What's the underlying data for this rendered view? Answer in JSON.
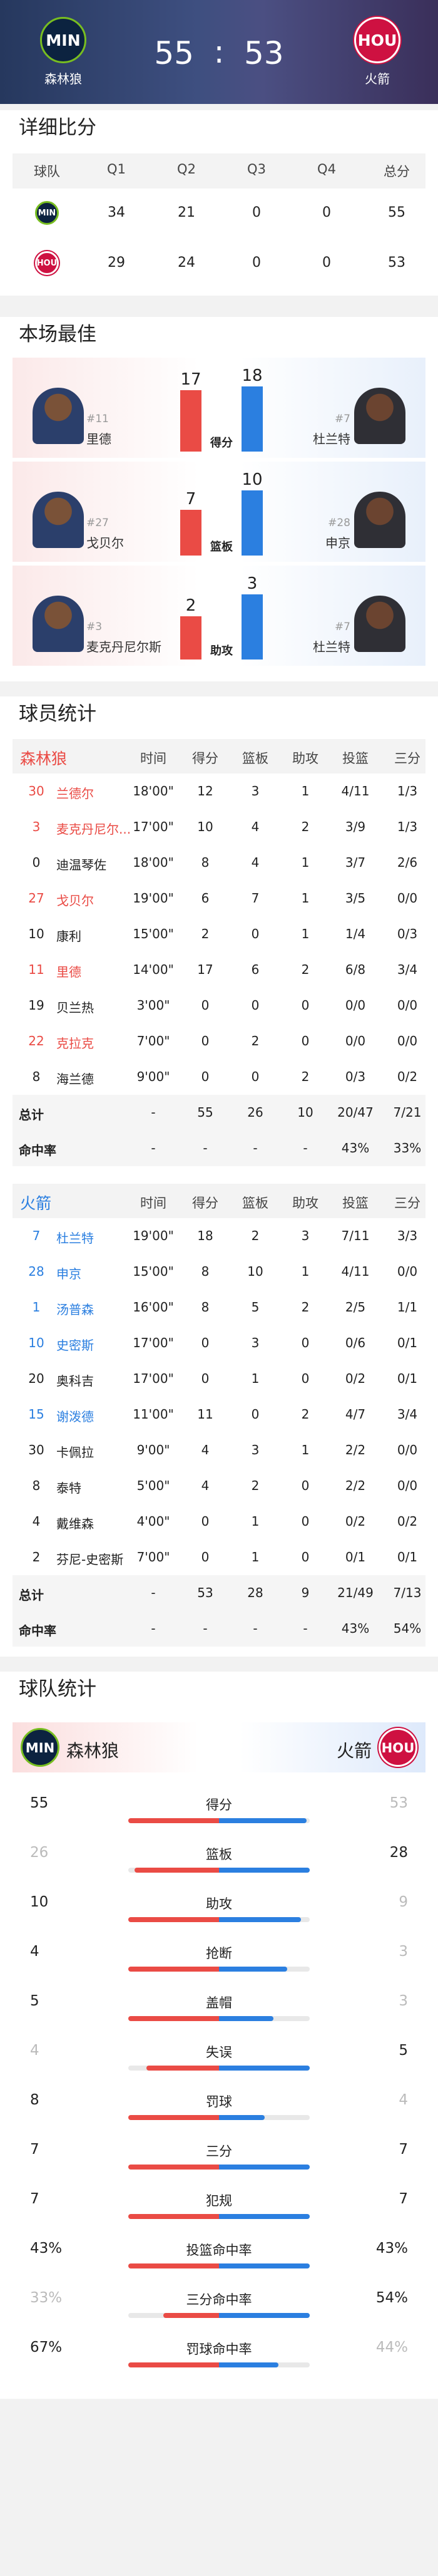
{
  "header": {
    "home": {
      "logo": "MIN",
      "name": "森林狼",
      "score": 55
    },
    "away": {
      "logo": "HOU",
      "name": "火箭",
      "score": 53
    },
    "separator": ":"
  },
  "colors": {
    "home": "#ea4b45",
    "away": "#2b7fe0"
  },
  "quarter_scores": {
    "title": "详细比分",
    "columns": [
      "球队",
      "Q1",
      "Q2",
      "Q3",
      "Q4",
      "总分"
    ],
    "rows": [
      {
        "logo": "MIN",
        "scores": [
          34,
          21,
          0,
          0,
          55
        ]
      },
      {
        "logo": "HOU",
        "scores": [
          29,
          24,
          0,
          0,
          53
        ]
      }
    ]
  },
  "leaders": {
    "title": "本场最佳",
    "items": [
      {
        "stat": "得分",
        "home": {
          "number": "#11",
          "name": "里德",
          "value": 17
        },
        "away": {
          "number": "#7",
          "name": "杜兰特",
          "value": 18
        }
      },
      {
        "stat": "篮板",
        "home": {
          "number": "#27",
          "name": "戈贝尔",
          "value": 7
        },
        "away": {
          "number": "#28",
          "name": "申京",
          "value": 10
        }
      },
      {
        "stat": "助攻",
        "home": {
          "number": "#3",
          "name": "麦克丹尼尔斯",
          "value": 2
        },
        "away": {
          "number": "#7",
          "name": "杜兰特",
          "value": 3
        }
      }
    ]
  },
  "player_stats": {
    "title": "球员统计",
    "columns": [
      "时间",
      "得分",
      "篮板",
      "助攻",
      "投篮",
      "三分"
    ],
    "teams": [
      {
        "name": "森林狼",
        "color": "#ea4b45",
        "players": [
          {
            "number": "30",
            "name": "兰德尔",
            "color": "#ea4b45",
            "cells": [
              "18'00\"",
              12,
              3,
              1,
              "4/11",
              "1/3"
            ]
          },
          {
            "number": "3",
            "name": "麦克丹尼尔...",
            "color": "#ea4b45",
            "cells": [
              "17'00\"",
              10,
              4,
              2,
              "3/9",
              "1/3"
            ]
          },
          {
            "number": "0",
            "name": "迪温琴佐",
            "cells": [
              "18'00\"",
              8,
              4,
              1,
              "3/7",
              "2/6"
            ]
          },
          {
            "number": "27",
            "name": "戈贝尔",
            "color": "#ea4b45",
            "cells": [
              "19'00\"",
              6,
              7,
              1,
              "3/5",
              "0/0"
            ]
          },
          {
            "number": "10",
            "name": "康利",
            "cells": [
              "15'00\"",
              2,
              0,
              1,
              "1/4",
              "0/3"
            ]
          },
          {
            "number": "11",
            "name": "里德",
            "color": "#ea4b45",
            "cells": [
              "14'00\"",
              17,
              6,
              2,
              "6/8",
              "3/4"
            ]
          },
          {
            "number": "19",
            "name": "贝兰热",
            "cells": [
              "3'00\"",
              0,
              0,
              0,
              "0/0",
              "0/0"
            ]
          },
          {
            "number": "22",
            "name": "克拉克",
            "color": "#ea4b45",
            "cells": [
              "7'00\"",
              0,
              2,
              0,
              "0/0",
              "0/0"
            ]
          },
          {
            "number": "8",
            "name": "海兰德",
            "cells": [
              "9'00\"",
              0,
              0,
              2,
              "0/3",
              "0/2"
            ]
          }
        ],
        "total": {
          "label": "总计",
          "cells": [
            "-",
            55,
            26,
            10,
            "20/47",
            "7/21"
          ]
        },
        "pct": {
          "label": "命中率",
          "cells": [
            "-",
            "-",
            "-",
            "-",
            "43%",
            "33%"
          ]
        }
      },
      {
        "name": "火箭",
        "color": "#2b7fe0",
        "players": [
          {
            "number": "7",
            "name": "杜兰特",
            "color": "#2b7fe0",
            "cells": [
              "19'00\"",
              18,
              2,
              3,
              "7/11",
              "3/3"
            ]
          },
          {
            "number": "28",
            "name": "申京",
            "color": "#2b7fe0",
            "cells": [
              "15'00\"",
              8,
              10,
              1,
              "4/11",
              "0/0"
            ]
          },
          {
            "number": "1",
            "name": "汤普森",
            "color": "#2b7fe0",
            "cells": [
              "16'00\"",
              8,
              5,
              2,
              "2/5",
              "1/1"
            ]
          },
          {
            "number": "10",
            "name": "史密斯",
            "color": "#2b7fe0",
            "cells": [
              "17'00\"",
              0,
              3,
              0,
              "0/6",
              "0/1"
            ]
          },
          {
            "number": "20",
            "name": "奥科吉",
            "cells": [
              "17'00\"",
              0,
              1,
              0,
              "0/2",
              "0/1"
            ]
          },
          {
            "number": "15",
            "name": "谢泼德",
            "color": "#2b7fe0",
            "cells": [
              "11'00\"",
              11,
              0,
              2,
              "4/7",
              "3/4"
            ]
          },
          {
            "number": "30",
            "name": "卡佩拉",
            "cells": [
              "9'00\"",
              4,
              3,
              1,
              "2/2",
              "0/0"
            ]
          },
          {
            "number": "8",
            "name": "泰特",
            "cells": [
              "5'00\"",
              4,
              2,
              0,
              "2/2",
              "0/0"
            ]
          },
          {
            "number": "4",
            "name": "戴维森",
            "cells": [
              "4'00\"",
              0,
              1,
              0,
              "0/2",
              "0/2"
            ]
          },
          {
            "number": "2",
            "name": "芬尼-史密斯",
            "cells": [
              "7'00\"",
              0,
              1,
              0,
              "0/1",
              "0/1"
            ]
          }
        ],
        "total": {
          "label": "总计",
          "cells": [
            "-",
            53,
            28,
            9,
            "21/49",
            "7/13"
          ]
        },
        "pct": {
          "label": "命中率",
          "cells": [
            "-",
            "-",
            "-",
            "-",
            "43%",
            "54%"
          ]
        }
      }
    ]
  },
  "team_stats": {
    "title": "球队统计",
    "home": {
      "logo": "MIN",
      "name": "森林狼"
    },
    "away": {
      "logo": "HOU",
      "name": "火箭"
    },
    "rows": [
      {
        "name": "得分",
        "home": 55,
        "away": 53
      },
      {
        "name": "篮板",
        "home": 26,
        "away": 28
      },
      {
        "name": "助攻",
        "home": 10,
        "away": 9
      },
      {
        "name": "抢断",
        "home": 4,
        "away": 3
      },
      {
        "name": "盖帽",
        "home": 5,
        "away": 3
      },
      {
        "name": "失误",
        "home": 4,
        "away": 5
      },
      {
        "name": "罚球",
        "home": 8,
        "away": 4
      },
      {
        "name": "三分",
        "home": 7,
        "away": 7
      },
      {
        "name": "犯规",
        "home": 7,
        "away": 7
      },
      {
        "name": "投篮命中率",
        "home": {
          "value": 43,
          "label": "43%"
        },
        "away": {
          "value": 43,
          "label": "43%"
        }
      },
      {
        "name": "三分命中率",
        "home": {
          "value": 33,
          "label": "33%"
        },
        "away": {
          "value": 54,
          "label": "54%"
        }
      },
      {
        "name": "罚球命中率",
        "home": {
          "value": 67,
          "label": "67%"
        },
        "away": {
          "value": 44,
          "label": "44%"
        }
      }
    ]
  }
}
